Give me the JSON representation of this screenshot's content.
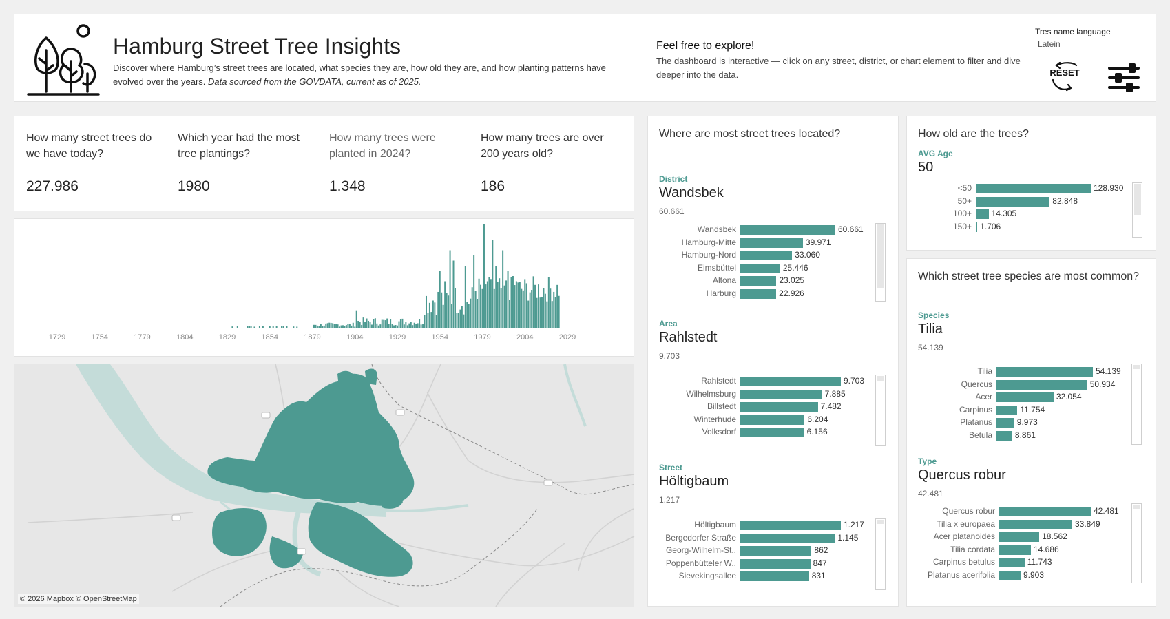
{
  "header": {
    "title": "Hamburg Street Tree Insights",
    "description": "Discover where Hamburg’s street trees are located, what species they are, how old they are, and how planting patterns have evolved over the years.",
    "source_note": "Data sourced from the GOVDATA, current as of 2025.",
    "explore_title": "Feel free to explore!",
    "explore_text": "The dashboard is interactive — click on any street, district, or chart element to filter and dive deeper into the data.",
    "language_label": "Tres name language",
    "language_value": "Latein",
    "reset_label": "RESET"
  },
  "kpis": [
    {
      "question": "How many street trees do we have today?",
      "value": "227.986"
    },
    {
      "question": "Which year had the most tree plantings?",
      "value": "1980"
    },
    {
      "question": "How many trees were planted in 2024?",
      "value": "1.348"
    },
    {
      "question": "How many trees are over 200 years old?",
      "value": "186"
    }
  ],
  "timeline": {
    "tick_labels": [
      "1729",
      "1754",
      "1779",
      "1804",
      "1829",
      "1854",
      "1879",
      "1904",
      "1929",
      "1954",
      "1979",
      "2004",
      "2029"
    ]
  },
  "map": {
    "attribution": "© 2026 Mapbox © OpenStreetMap"
  },
  "location": {
    "title": "Where are most street trees located?",
    "district": {
      "label": "District",
      "selected": "Wandsbek",
      "selected_value": "60.661",
      "items": [
        {
          "name": "Wandsbek",
          "value": 60661,
          "display": "60.661"
        },
        {
          "name": "Hamburg-Mitte",
          "value": 39971,
          "display": "39.971"
        },
        {
          "name": "Hamburg-Nord",
          "value": 33060,
          "display": "33.060"
        },
        {
          "name": "Eimsbüttel",
          "value": 25446,
          "display": "25.446"
        },
        {
          "name": "Altona",
          "value": 23025,
          "display": "23.025"
        },
        {
          "name": "Harburg",
          "value": 22926,
          "display": "22.926"
        }
      ]
    },
    "area": {
      "label": "Area",
      "selected": "Rahlstedt",
      "selected_value": "9.703",
      "items": [
        {
          "name": "Rahlstedt",
          "value": 9703,
          "display": "9.703"
        },
        {
          "name": "Wilhelmsburg",
          "value": 7885,
          "display": "7.885"
        },
        {
          "name": "Billstedt",
          "value": 7482,
          "display": "7.482"
        },
        {
          "name": "Winterhude",
          "value": 6204,
          "display": "6.204"
        },
        {
          "name": "Volksdorf",
          "value": 6156,
          "display": "6.156"
        }
      ]
    },
    "street": {
      "label": "Street",
      "selected": "Höltigbaum",
      "selected_value": "1.217",
      "items": [
        {
          "name": "Höltigbaum",
          "value": 1217,
          "display": "1.217"
        },
        {
          "name": "Bergedorfer Straße",
          "value": 1145,
          "display": "1.145"
        },
        {
          "name": "Georg-Wilhelm-St..",
          "value": 862,
          "display": "862"
        },
        {
          "name": "Poppenbütteler W..",
          "value": 847,
          "display": "847"
        },
        {
          "name": "Sievekingsallee",
          "value": 831,
          "display": "831"
        }
      ]
    }
  },
  "age": {
    "title": "How old are the trees?",
    "avg_label": "AVG Age",
    "avg_value": "50",
    "items": [
      {
        "name": "<50",
        "value": 128930,
        "display": "128.930"
      },
      {
        "name": "50+",
        "value": 82848,
        "display": "82.848"
      },
      {
        "name": "100+",
        "value": 14305,
        "display": "14.305"
      },
      {
        "name": "150+",
        "value": 1706,
        "display": "1.706"
      }
    ]
  },
  "species": {
    "title": "Which street tree species are most common?",
    "species": {
      "label": "Species",
      "selected": "Tilia",
      "selected_value": "54.139",
      "items": [
        {
          "name": "Tilia",
          "value": 54139,
          "display": "54.139"
        },
        {
          "name": "Quercus",
          "value": 50934,
          "display": "50.934"
        },
        {
          "name": "Acer",
          "value": 32054,
          "display": "32.054"
        },
        {
          "name": "Carpinus",
          "value": 11754,
          "display": "11.754"
        },
        {
          "name": "Platanus",
          "value": 9973,
          "display": "9.973"
        },
        {
          "name": "Betula",
          "value": 8861,
          "display": "8.861"
        }
      ]
    },
    "type": {
      "label": "Type",
      "selected": "Quercus robur",
      "selected_value": "42.481",
      "items": [
        {
          "name": "Quercus robur",
          "value": 42481,
          "display": "42.481"
        },
        {
          "name": "Tilia x europaea",
          "value": 33849,
          "display": "33.849"
        },
        {
          "name": "Acer platanoides",
          "value": 18562,
          "display": "18.562"
        },
        {
          "name": "Tilia cordata",
          "value": 14686,
          "display": "14.686"
        },
        {
          "name": "Carpinus betulus",
          "value": 11743,
          "display": "11.743"
        },
        {
          "name": "Platanus acerifolia",
          "value": 9903,
          "display": "9.903"
        }
      ]
    }
  },
  "colors": {
    "accent": "#4d9a91",
    "bar": "#4d9a91",
    "map_water": "#c4dcd9",
    "map_land": "#e7e7e7"
  }
}
